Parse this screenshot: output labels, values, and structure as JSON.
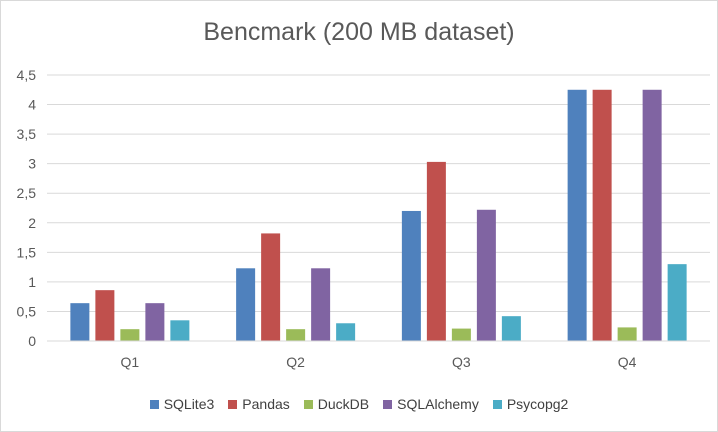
{
  "chart_data": {
    "type": "bar",
    "title": "Bencmark (200 MB dataset)",
    "xlabel": "",
    "ylabel": "",
    "categories": [
      "Q1",
      "Q2",
      "Q3",
      "Q4"
    ],
    "ylim": [
      0,
      4.5
    ],
    "yticks": [
      "0",
      "0,5",
      "1",
      "1,5",
      "2",
      "2,5",
      "3",
      "3,5",
      "4",
      "4,5"
    ],
    "grid": true,
    "legend_position": "bottom",
    "series": [
      {
        "name": "SQLite3",
        "color": "#4f81bd",
        "values": [
          0.64,
          1.23,
          2.2,
          4.25
        ]
      },
      {
        "name": "Pandas",
        "color": "#c0504d",
        "values": [
          0.86,
          1.82,
          3.03,
          4.25
        ]
      },
      {
        "name": "DuckDB",
        "color": "#9bbb59",
        "values": [
          0.2,
          0.2,
          0.21,
          0.23
        ]
      },
      {
        "name": "SQLAlchemy",
        "color": "#8064a2",
        "values": [
          0.64,
          1.23,
          2.22,
          4.25
        ]
      },
      {
        "name": "Psycopg2",
        "color": "#4bacc6",
        "values": [
          0.35,
          0.3,
          0.42,
          1.3
        ]
      }
    ]
  }
}
